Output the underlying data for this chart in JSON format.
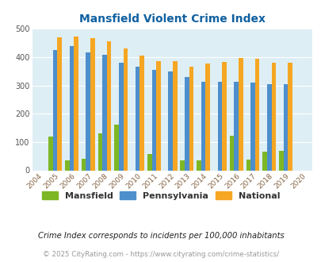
{
  "title": "Mansfield Violent Crime Index",
  "years": [
    2004,
    2005,
    2006,
    2007,
    2008,
    2009,
    2010,
    2011,
    2012,
    2013,
    2014,
    2015,
    2016,
    2017,
    2018,
    2019,
    2020
  ],
  "mansfield": [
    0,
    120,
    35,
    40,
    130,
    160,
    0,
    58,
    0,
    35,
    35,
    0,
    122,
    38,
    67,
    70,
    0
  ],
  "pennsylvania": [
    0,
    425,
    440,
    418,
    408,
    380,
    367,
    354,
    348,
    330,
    314,
    314,
    314,
    311,
    305,
    305,
    0
  ],
  "national": [
    0,
    469,
    473,
    467,
    455,
    432,
    405,
    387,
    387,
    367,
    376,
    383,
    397,
    394,
    380,
    379,
    0
  ],
  "colors": {
    "mansfield": "#7db724",
    "pennsylvania": "#4d8fcc",
    "national": "#f5a623"
  },
  "ylim": [
    0,
    500
  ],
  "yticks": [
    0,
    100,
    200,
    300,
    400,
    500
  ],
  "plot_bg": "#deeef5",
  "title_color": "#1060a0",
  "footer_text": "Crime Index corresponds to incidents per 100,000 inhabitants",
  "copyright_text": "© 2025 CityRating.com - https://www.cityrating.com/crime-statistics/",
  "bar_width": 0.27
}
